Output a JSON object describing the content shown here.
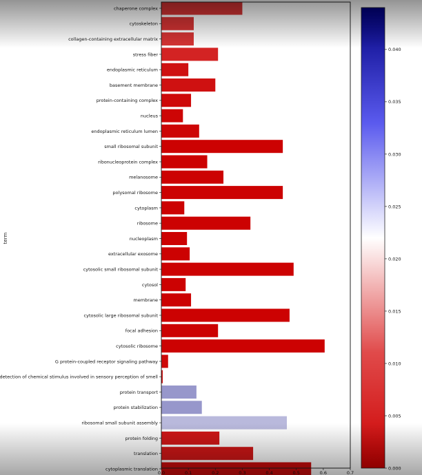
{
  "chart_data": {
    "type": "bar",
    "orientation": "horizontal",
    "ylabel": "term",
    "xlim": [
      0,
      0.7
    ],
    "x_ticks": [
      "0.0",
      "0.1",
      "0.2",
      "0.3",
      "0.4",
      "0.5",
      "0.6",
      "0.7"
    ],
    "colorbar": {
      "colormap": "bwr_r",
      "range": [
        0,
        0.044
      ],
      "ticks": [
        "0.000",
        "0.005",
        "0.010",
        "0.015",
        "0.020",
        "0.025",
        "0.030",
        "0.035",
        "0.040"
      ],
      "low_color": "#cc0000",
      "mid_color": "#ffffff",
      "high_color": "#000080"
    },
    "bars": [
      {
        "term": "chaperone complex",
        "value": 0.3,
        "color_value": 0.0045
      },
      {
        "term": "cytoskeleton",
        "value": 0.12,
        "color_value": 0.0045
      },
      {
        "term": "collagen-containing extracellular matrix",
        "value": 0.12,
        "color_value": 0.0045
      },
      {
        "term": "stress fiber",
        "value": 0.21,
        "color_value": 0.003
      },
      {
        "term": "endoplasmic reticulum",
        "value": 0.1,
        "color_value": 0.0015
      },
      {
        "term": "basement membrane",
        "value": 0.2,
        "color_value": 0.0015
      },
      {
        "term": "protein-containing complex",
        "value": 0.11,
        "color_value": 0.0008
      },
      {
        "term": "nucleus",
        "value": 0.08,
        "color_value": 0.0004
      },
      {
        "term": "endoplasmic reticulum lumen",
        "value": 0.14,
        "color_value": 0.0004
      },
      {
        "term": "small ribosomal subunit",
        "value": 0.45,
        "color_value": 0.0002
      },
      {
        "term": "ribonucleoprotein complex",
        "value": 0.17,
        "color_value": 0.0002
      },
      {
        "term": "melanosome",
        "value": 0.23,
        "color_value": 0.0002
      },
      {
        "term": "polysomal ribosome",
        "value": 0.45,
        "color_value": 0.0002
      },
      {
        "term": "cytoplasm",
        "value": 0.085,
        "color_value": 0.0002
      },
      {
        "term": "ribosome",
        "value": 0.33,
        "color_value": 0.0002
      },
      {
        "term": "nucleoplasm",
        "value": 0.095,
        "color_value": 0.0002
      },
      {
        "term": "extracellular exosome",
        "value": 0.105,
        "color_value": 0.0002
      },
      {
        "term": "cytosolic small ribosomal subunit",
        "value": 0.49,
        "color_value": 0.0002
      },
      {
        "term": "cytosol",
        "value": 0.09,
        "color_value": 0.0002
      },
      {
        "term": "membrane",
        "value": 0.11,
        "color_value": 0.0002
      },
      {
        "term": "cytosolic large ribosomal subunit",
        "value": 0.475,
        "color_value": 0.0002
      },
      {
        "term": "focal adhesion",
        "value": 0.21,
        "color_value": 0.0002
      },
      {
        "term": "cytosolic ribosome",
        "value": 0.605,
        "color_value": 0.0002
      },
      {
        "term": "G protein-coupled receptor signaling pathway",
        "value": 0.025,
        "color_value": 0.0008
      },
      {
        "term": "detection of chemical stimulus involved in sensory perception of smell",
        "value": 0.005,
        "color_value": 0.0008
      },
      {
        "term": "protein transport",
        "value": 0.13,
        "color_value": 0.031
      },
      {
        "term": "protein stabilization",
        "value": 0.15,
        "color_value": 0.031
      },
      {
        "term": "ribosomal small subunit assembly",
        "value": 0.465,
        "color_value": 0.028
      },
      {
        "term": "protein folding",
        "value": 0.215,
        "color_value": 0.002
      },
      {
        "term": "translation",
        "value": 0.34,
        "color_value": 0.002
      },
      {
        "term": "cytoplasmic translation",
        "value": 0.555,
        "color_value": 0.001
      }
    ]
  }
}
